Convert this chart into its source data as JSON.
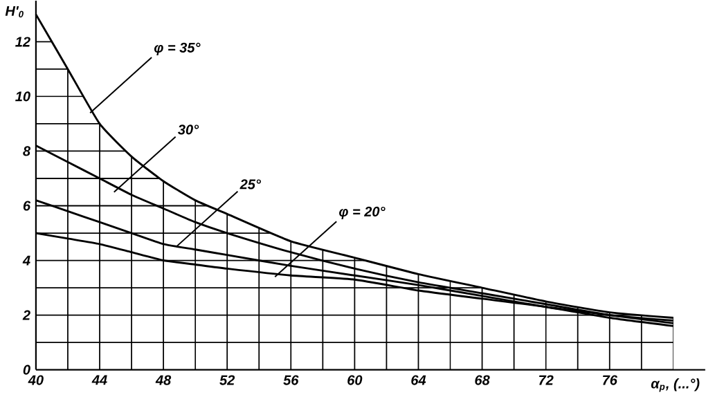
{
  "chart_data": {
    "type": "line",
    "xlabel": "α$_{р}$, (...°)",
    "ylabel": "H'$_{0}$",
    "x": [
      40,
      42,
      44,
      46,
      48,
      50,
      52,
      56,
      60,
      64,
      68,
      72,
      76,
      80
    ],
    "series": [
      {
        "color": "#000000",
        "values": [
          13.0,
          11.0,
          9.0,
          7.8,
          6.9,
          6.2,
          5.7,
          4.7,
          4.1,
          3.5,
          3.0,
          2.5,
          2.1,
          1.9
        ]
      },
      {
        "color": "#000000",
        "values": [
          8.2,
          7.6,
          7.0,
          6.4,
          5.9,
          5.4,
          5.0,
          4.3,
          3.7,
          3.2,
          2.8,
          2.4,
          2.0,
          1.8
        ]
      },
      {
        "color": "#000000",
        "values": [
          6.2,
          5.8,
          5.4,
          5.0,
          4.6,
          4.4,
          4.2,
          3.8,
          3.45,
          3.1,
          2.7,
          2.3,
          2.0,
          1.7
        ]
      },
      {
        "color": "#000000",
        "values": [
          5.0,
          4.8,
          4.6,
          4.3,
          4.0,
          3.85,
          3.7,
          3.45,
          3.3,
          2.9,
          2.6,
          2.3,
          1.9,
          1.6
        ]
      }
    ],
    "annotations": [
      {
        "text": "φ = 35°",
        "x": 43.4,
        "y": 9.4
      },
      {
        "text": "30°",
        "x": 44.9,
        "y": 6.5
      },
      {
        "text": "25°",
        "x": 48.8,
        "y": 4.5
      },
      {
        "text": "φ = 20°",
        "x": 55,
        "y": 3.4
      }
    ],
    "xlim": [
      40,
      82
    ],
    "ylim": [
      0,
      13.5
    ],
    "xticks": [
      40,
      44,
      48,
      52,
      56,
      60,
      64,
      68,
      72,
      76
    ],
    "yticks": [
      0,
      2,
      4,
      6,
      8,
      10,
      12
    ],
    "grid": true,
    "marker": "none",
    "line_style": "solid"
  }
}
